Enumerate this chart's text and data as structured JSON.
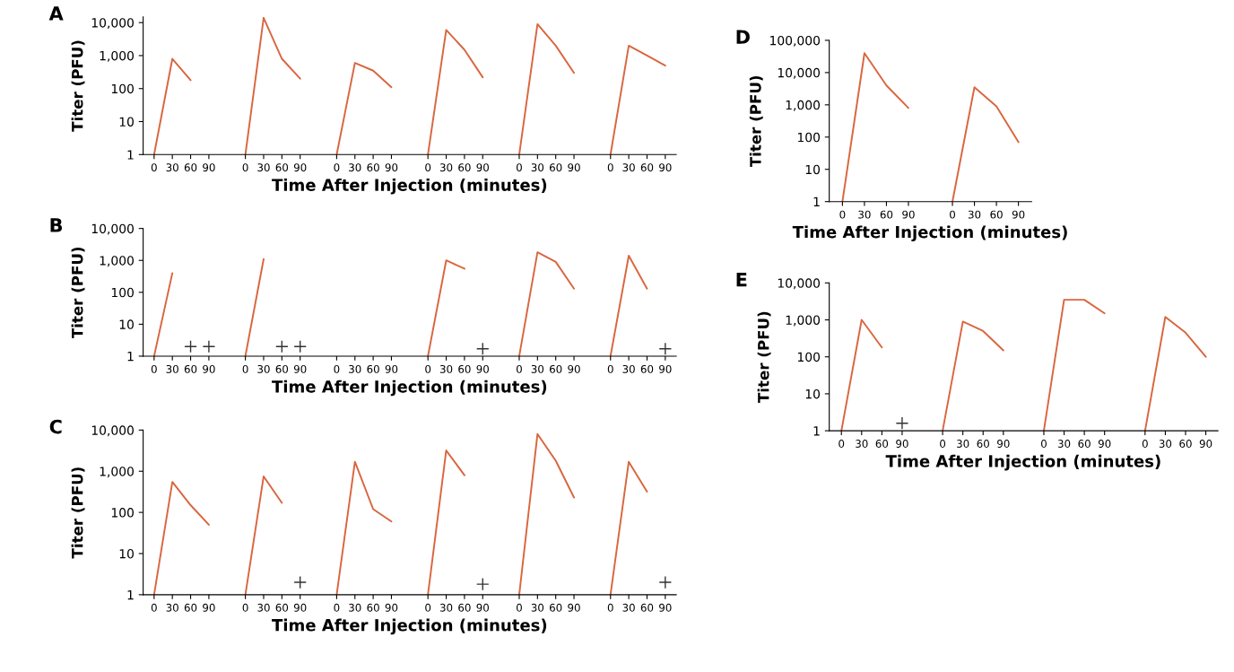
{
  "chart_data": [
    {
      "type": "line",
      "title": "A",
      "xlabel": "Time After Injection (minutes)",
      "ylabel": "Titer (PFU)",
      "log": "y",
      "legend": false,
      "categories": [
        "0",
        "30",
        "60",
        "90",
        null,
        "0",
        "30",
        "60",
        "90",
        null,
        "0",
        "30",
        "60",
        "90",
        null,
        "0",
        "30",
        "60",
        "90",
        null,
        "0",
        "30",
        "60",
        "90",
        null,
        "0",
        "30",
        "60",
        "90"
      ],
      "ylim": [
        1,
        15000
      ],
      "yticks": [
        1,
        10,
        100,
        {
          "value": 1000,
          "label": "1,000"
        },
        {
          "value": 10000,
          "label": "10,000"
        }
      ],
      "series": [
        {
          "color": "#d9663f",
          "values": [
            1,
            800,
            180,
            null,
            null,
            1,
            14000,
            800,
            200,
            null,
            1,
            600,
            350,
            110,
            null,
            1,
            6000,
            1500,
            220,
            null,
            1,
            9000,
            2000,
            300,
            null,
            1,
            2000,
            1000,
            500
          ]
        }
      ]
    },
    {
      "type": "line",
      "title": "B",
      "xlabel": "Time After Injection (minutes)",
      "ylabel": "Titer (PFU)",
      "log": "y",
      "legend": false,
      "categories": [
        "0",
        "30",
        "60",
        "90",
        null,
        "0",
        "30",
        "60",
        "90",
        null,
        "0",
        "30",
        "60",
        "90",
        null,
        "0",
        "30",
        "60",
        "90",
        null,
        "0",
        "30",
        "60",
        "90",
        null,
        "0",
        "30",
        "60",
        "90"
      ],
      "ylim": [
        1,
        10000
      ],
      "yticks": [
        1,
        10,
        100,
        {
          "value": 1000,
          "label": "1,000"
        },
        {
          "value": 10000,
          "label": "10,000"
        }
      ],
      "series": [
        {
          "color": "#d9663f",
          "values": [
            1,
            400,
            null,
            null,
            null,
            1,
            1100,
            null,
            null,
            null,
            null,
            null,
            null,
            null,
            null,
            1,
            1000,
            550,
            null,
            null,
            1,
            1800,
            900,
            130,
            null,
            1,
            1400,
            130,
            null
          ]
        },
        {
          "type": "scatter",
          "marker": "cross",
          "color": "#333333",
          "values": [
            null,
            null,
            2,
            2,
            null,
            null,
            null,
            2,
            2,
            null,
            null,
            null,
            null,
            null,
            null,
            null,
            null,
            null,
            1.7,
            null,
            null,
            null,
            null,
            null,
            null,
            null,
            null,
            null,
            1.7
          ]
        }
      ]
    },
    {
      "type": "line",
      "title": "C",
      "xlabel": "Time After Injection (minutes)",
      "ylabel": "Titer (PFU)",
      "log": "y",
      "legend": false,
      "categories": [
        "0",
        "30",
        "60",
        "90",
        null,
        "0",
        "30",
        "60",
        "90",
        null,
        "0",
        "30",
        "60",
        "90",
        null,
        "0",
        "30",
        "60",
        "90",
        null,
        "0",
        "30",
        "60",
        "90",
        null,
        "0",
        "30",
        "60",
        "90"
      ],
      "ylim": [
        1,
        10000
      ],
      "yticks": [
        1,
        10,
        100,
        {
          "value": 1000,
          "label": "1,000"
        },
        {
          "value": 10000,
          "label": "10,000"
        }
      ],
      "series": [
        {
          "color": "#d9663f",
          "values": [
            1,
            550,
            150,
            50,
            null,
            1,
            750,
            170,
            null,
            null,
            1,
            1700,
            120,
            60,
            null,
            1,
            3200,
            800,
            null,
            null,
            1,
            8000,
            1800,
            230,
            null,
            1,
            1700,
            320,
            null
          ]
        },
        {
          "type": "scatter",
          "marker": "cross",
          "color": "#333333",
          "values": [
            null,
            null,
            null,
            null,
            null,
            null,
            null,
            null,
            2,
            null,
            null,
            null,
            null,
            null,
            null,
            null,
            null,
            null,
            1.8,
            null,
            null,
            null,
            null,
            null,
            null,
            null,
            null,
            null,
            2
          ]
        }
      ]
    },
    {
      "type": "line",
      "title": "D",
      "xlabel": "Time After Injection (minutes)",
      "ylabel": "Titer (PFU)",
      "log": "y",
      "legend": false,
      "categories": [
        "0",
        "30",
        "60",
        "90",
        null,
        "0",
        "30",
        "60",
        "90"
      ],
      "ylim": [
        1,
        100000
      ],
      "yticks": [
        1,
        10,
        100,
        {
          "value": 1000,
          "label": "1,000"
        },
        {
          "value": 10000,
          "label": "10,000"
        },
        {
          "value": 100000,
          "label": "100,000"
        }
      ],
      "series": [
        {
          "color": "#d9663f",
          "values": [
            1,
            40000,
            4000,
            800,
            null,
            1,
            3500,
            900,
            70
          ]
        }
      ]
    },
    {
      "type": "line",
      "title": "E",
      "xlabel": "Time After Injection (minutes)",
      "ylabel": "Titer (PFU)",
      "log": "y",
      "legend": false,
      "categories": [
        "0",
        "30",
        "60",
        "90",
        null,
        "0",
        "30",
        "60",
        "90",
        null,
        "0",
        "30",
        "60",
        "90",
        null,
        "0",
        "30",
        "60",
        "90"
      ],
      "ylim": [
        1,
        10000
      ],
      "yticks": [
        1,
        10,
        100,
        {
          "value": 1000,
          "label": "1,000"
        },
        {
          "value": 10000,
          "label": "10,000"
        }
      ],
      "series": [
        {
          "color": "#d9663f",
          "values": [
            1,
            1000,
            180,
            null,
            null,
            1,
            900,
            500,
            150,
            null,
            1,
            3500,
            3500,
            1500,
            null,
            1,
            1200,
            450,
            100
          ]
        },
        {
          "type": "scatter",
          "marker": "cross",
          "color": "#333333",
          "values": [
            null,
            null,
            null,
            1.6,
            null,
            null,
            null,
            null,
            null,
            null,
            null,
            null,
            null,
            null,
            null,
            null,
            null,
            null,
            null
          ]
        }
      ]
    }
  ]
}
